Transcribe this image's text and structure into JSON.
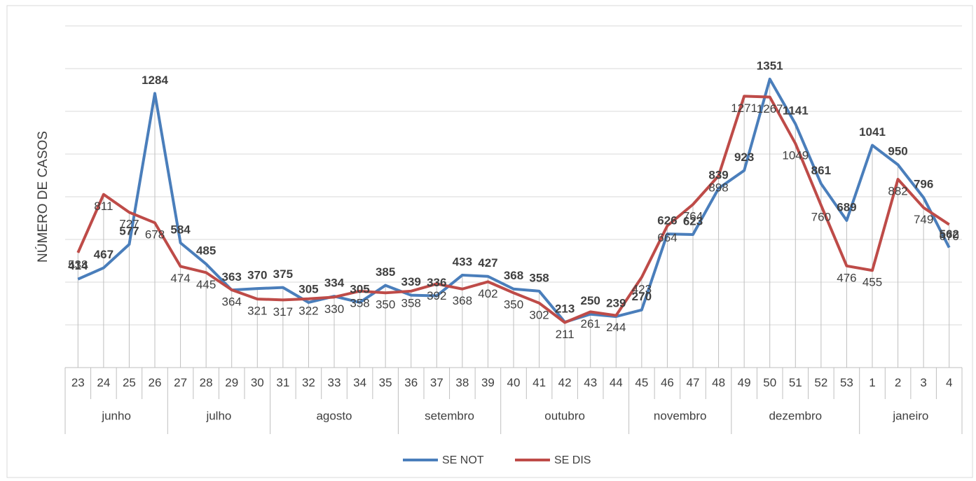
{
  "chart_data": {
    "type": "line",
    "y_label": "NÚMERO DE CASOS",
    "categories": [
      "23",
      "24",
      "25",
      "26",
      "27",
      "28",
      "29",
      "30",
      "31",
      "32",
      "33",
      "34",
      "35",
      "36",
      "37",
      "38",
      "39",
      "40",
      "41",
      "42",
      "43",
      "44",
      "45",
      "46",
      "47",
      "48",
      "49",
      "50",
      "51",
      "52",
      "53",
      "1",
      "2",
      "3",
      "4"
    ],
    "month_labels": [
      "junho",
      null,
      null,
      null,
      "julho",
      null,
      null,
      null,
      "agosto",
      null,
      null,
      null,
      null,
      "setembro",
      null,
      null,
      null,
      "outubro",
      null,
      null,
      null,
      null,
      "novembro",
      null,
      null,
      null,
      "dezembro",
      null,
      null,
      null,
      null,
      "janeiro",
      null,
      null,
      null
    ],
    "series": [
      {
        "name": "SE NOT",
        "color": "#4a7ebb",
        "values": [
          414,
          467,
          577,
          1284,
          584,
          485,
          363,
          370,
          375,
          305,
          334,
          305,
          385,
          339,
          336,
          433,
          427,
          368,
          358,
          213,
          250,
          239,
          270,
          626,
          623,
          839,
          923,
          1351,
          1141,
          861,
          689,
          1041,
          950,
          796,
          562
        ]
      },
      {
        "name": "SE DIS",
        "color": "#be4b48",
        "values": [
          538,
          811,
          727,
          678,
          474,
          445,
          364,
          321,
          317,
          322,
          330,
          358,
          350,
          358,
          392,
          368,
          402,
          350,
          302,
          211,
          261,
          244,
          423,
          664,
          764,
          898,
          1271,
          1267,
          1049,
          760,
          476,
          455,
          882,
          749,
          670
        ]
      }
    ],
    "ylim": [
      0,
      1600
    ],
    "yticks": [
      0,
      200,
      400,
      600,
      800,
      1000,
      1200,
      1400,
      1600
    ],
    "grid": true
  }
}
